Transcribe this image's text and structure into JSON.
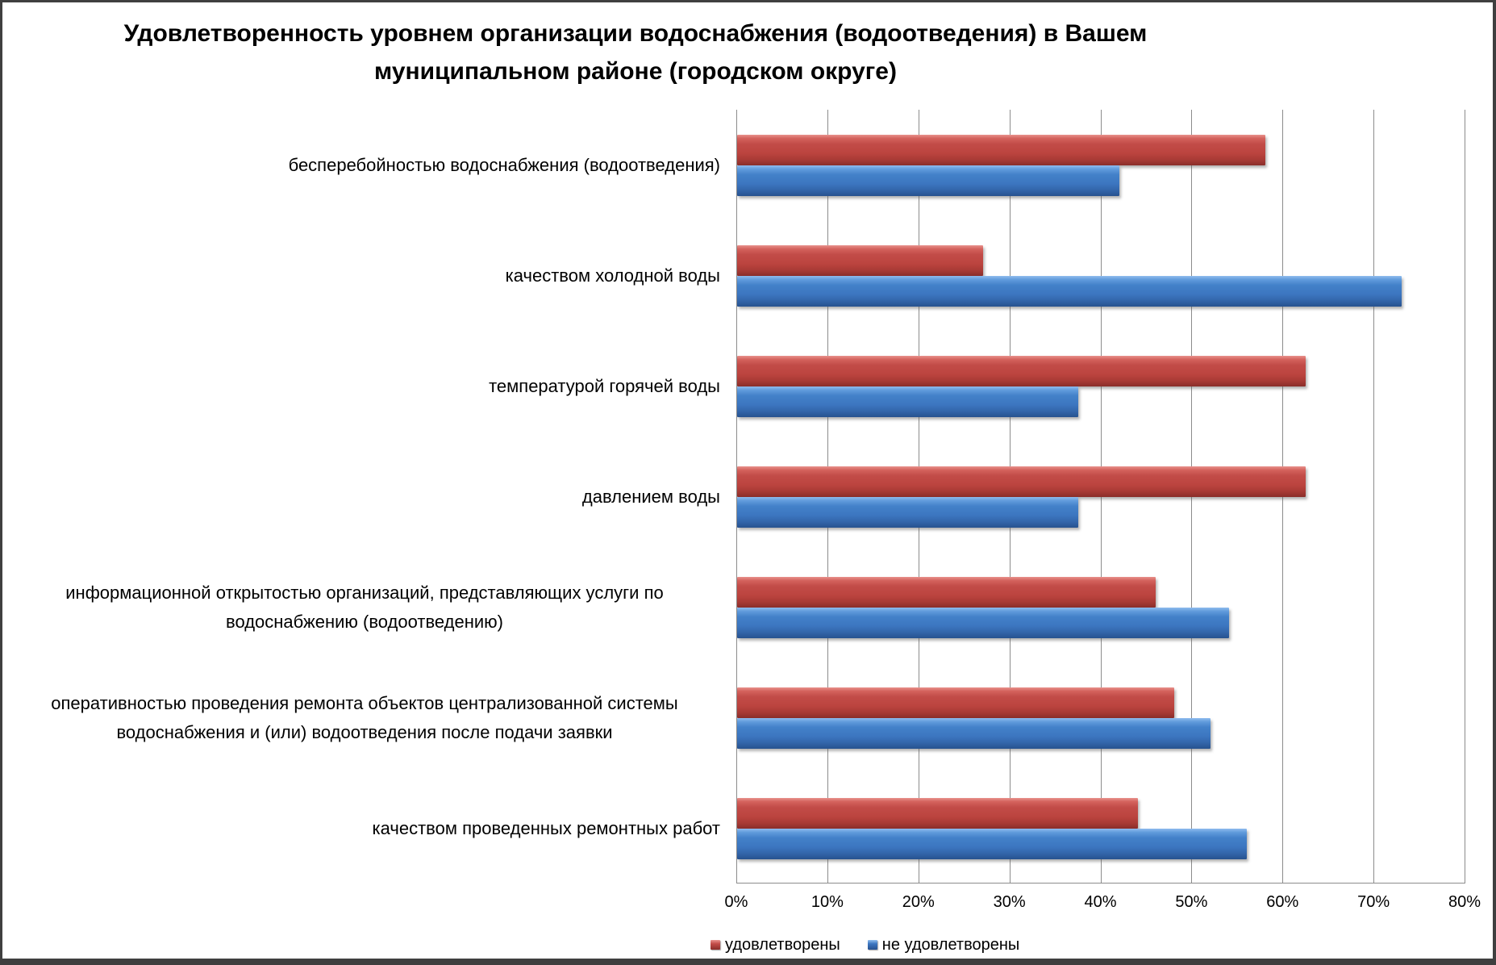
{
  "title": {
    "text": "Удовлетворенность уровнем организации водоснабжения (водоотведения) в Вашем муниципальном районе (городском округе)"
  },
  "chart_data": {
    "type": "bar",
    "orientation": "horizontal",
    "title": "Удовлетворенность уровнем организации водоснабжения (водоотведения) в Вашем муниципальном районе (городском округе)",
    "categories": [
      "бесперебойностью  водоснабжения (водоотведения)",
      "качеством холодной воды",
      "температурой горячей воды",
      "давлением воды",
      "информационной открытостью организаций, представляющих услуги по водоснабжению (водоотведению)",
      "оперативностью проведения ремонта объектов централизованной системы водоснабжения и (или) водоотведения после подачи заявки",
      "качеством проведенных ремонтных работ"
    ],
    "series": [
      {
        "name": "удовлетворены",
        "color": "#be4540",
        "values": [
          58,
          27,
          62.5,
          62.5,
          46,
          48,
          44
        ]
      },
      {
        "name": "не удовлетворены",
        "color": "#3c76c0",
        "values": [
          42,
          73,
          37.5,
          37.5,
          54,
          52,
          56
        ]
      }
    ],
    "x_axis": {
      "min": 0,
      "max": 80,
      "tick_step": 10,
      "ticks": [
        "0%",
        "10%",
        "20%",
        "30%",
        "40%",
        "50%",
        "60%",
        "70%",
        "80%"
      ],
      "unit": "%"
    },
    "grid": true,
    "legend_position": "bottom"
  }
}
